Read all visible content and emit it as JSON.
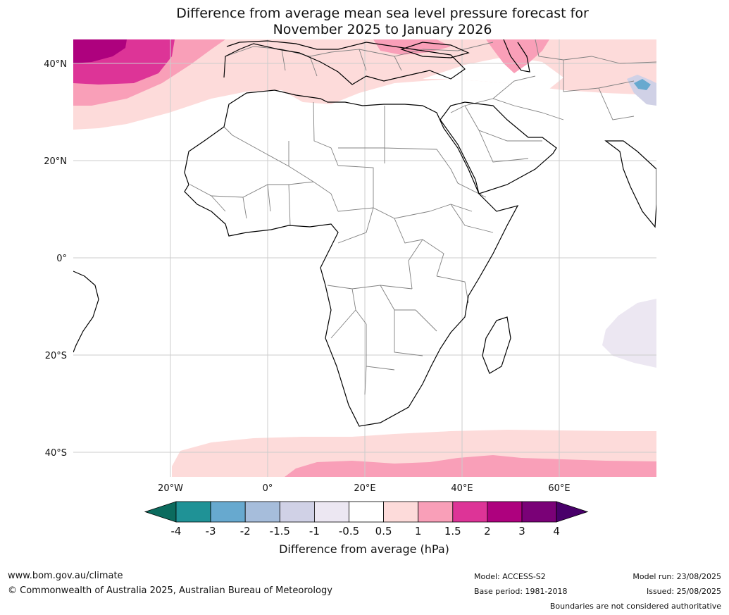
{
  "title": {
    "line1": "Difference from average mean sea level pressure forecast for",
    "line2": "November 2025 to January 2026"
  },
  "map": {
    "lat_labels": [
      "40°N",
      "20°N",
      "0°",
      "20°S",
      "40°S"
    ],
    "lon_labels": [
      "20°W",
      "0°",
      "20°E",
      "40°E",
      "60°E"
    ],
    "extent": {
      "lon_min": -40,
      "lon_max": 80,
      "lat_min": -45,
      "lat_max": 45
    }
  },
  "colorbar": {
    "label": "Difference from average (hPa)",
    "ticks": [
      "-4",
      "-3",
      "-2",
      "-1.5",
      "-1",
      "-0.5",
      "0.5",
      "1",
      "1.5",
      "2",
      "3",
      "4"
    ],
    "colors": {
      "under": "#0b6b5e",
      "bins": [
        "#1f9296",
        "#67a9cf",
        "#a6bddb",
        "#d0d1e6",
        "#ece7f2",
        "#ffffff",
        "#fddbda",
        "#f99fb8",
        "#dd3497",
        "#ae017e",
        "#7a0177"
      ],
      "over": "#49006a"
    }
  },
  "footer": {
    "website": "www.bom.gov.au/climate",
    "copyright": "© Commonwealth of Australia 2025, Australian Bureau of Meteorology",
    "model": "Model: ACCESS-S2",
    "base_period": "Base period: 1981-2018",
    "model_run": "Model run: 23/08/2025",
    "issued": "Issued: 25/08/2025",
    "disclaimer": "Boundaries are not considered authoritative"
  }
}
